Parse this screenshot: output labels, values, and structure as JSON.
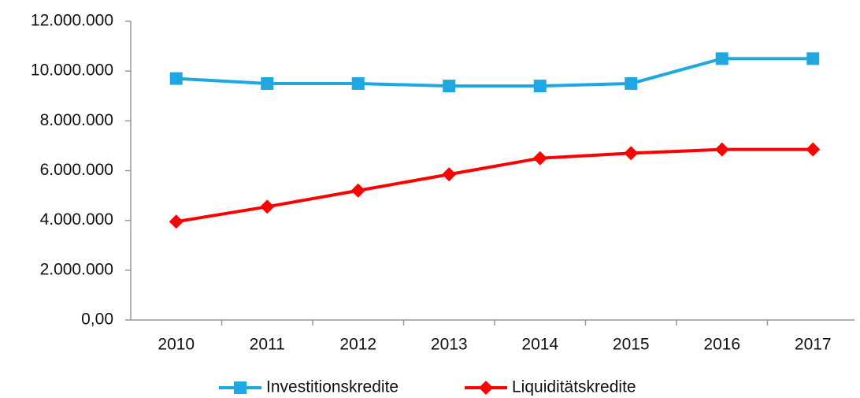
{
  "chart_data": {
    "type": "line",
    "categories": [
      "2010",
      "2011",
      "2012",
      "2013",
      "2014",
      "2015",
      "2016",
      "2017"
    ],
    "series": [
      {
        "name": "Investitionskredite",
        "color": "#1ea7e0",
        "marker": "square",
        "values": [
          9700000,
          9500000,
          9500000,
          9400000,
          9400000,
          9500000,
          10500000,
          10500000
        ]
      },
      {
        "name": "Liquiditätskredite",
        "color": "#ff0000",
        "marker": "diamond",
        "values": [
          3950000,
          4550000,
          5200000,
          5850000,
          6500000,
          6700000,
          6850000,
          6850000
        ]
      }
    ],
    "ylim": [
      0,
      12000000
    ],
    "yticks": [
      {
        "value": 0,
        "label": "0,00"
      },
      {
        "value": 2000000,
        "label": "2.000.000"
      },
      {
        "value": 4000000,
        "label": "4.000.000"
      },
      {
        "value": 6000000,
        "label": "6.000.000"
      },
      {
        "value": 8000000,
        "label": "8.000.000"
      },
      {
        "value": 10000000,
        "label": "10.000.000"
      },
      {
        "value": 12000000,
        "label": "12.000.000"
      }
    ],
    "grid": false,
    "legend": "bottom"
  }
}
